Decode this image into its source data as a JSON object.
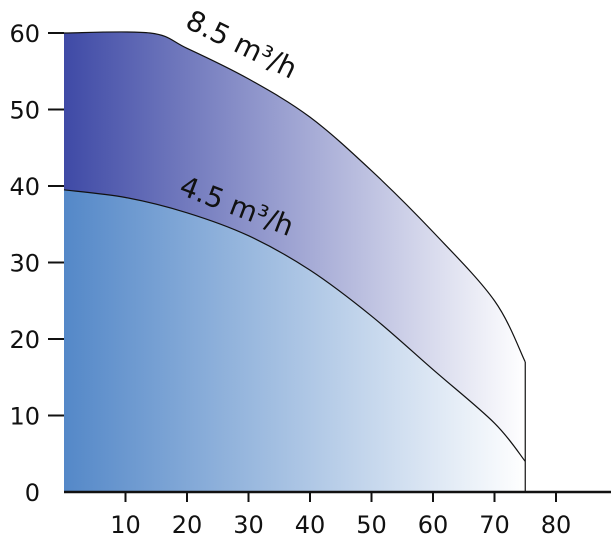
{
  "chart_data": {
    "type": "area",
    "x_ticks": [
      10,
      20,
      30,
      40,
      50,
      60,
      70,
      80
    ],
    "y_ticks": [
      0,
      10,
      20,
      30,
      40,
      50,
      60
    ],
    "xlim": [
      0,
      88
    ],
    "ylim": [
      0,
      60
    ],
    "series": [
      {
        "name": "8.5 m³/h",
        "x": [
          0,
          14,
          20,
          30,
          40,
          50,
          60,
          70,
          75
        ],
        "y": [
          60,
          60,
          58,
          54,
          49,
          42,
          34,
          25,
          17
        ]
      },
      {
        "name": "4.5 m³/h",
        "x": [
          0,
          10,
          20,
          30,
          40,
          50,
          60,
          70,
          75
        ],
        "y": [
          39.5,
          38.5,
          36.5,
          33.5,
          29,
          23,
          16,
          9,
          4
        ]
      }
    ],
    "colors": {
      "top_band_left": "#3f4aa6",
      "top_band_right": "#ffffff",
      "bottom_band_left": "#5488c8",
      "bottom_band_right": "#ffffff",
      "axis": "#111111",
      "curve": "#111111"
    }
  }
}
